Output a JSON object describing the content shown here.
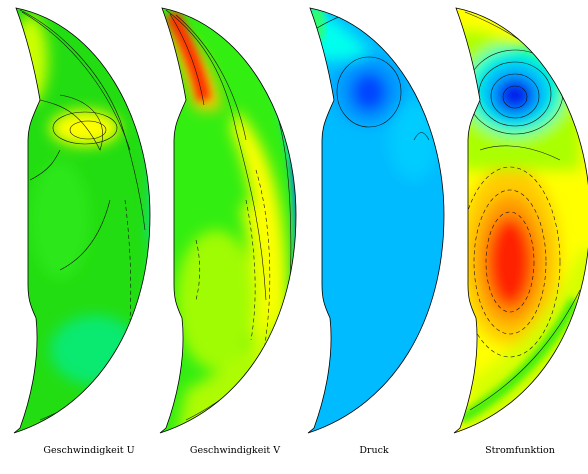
{
  "panels": [
    {
      "label": "Geschwindigkeit U"
    },
    {
      "label": "Geschwindigkeit V"
    },
    {
      "label": "Druck"
    },
    {
      "label": "Stromfunktion"
    }
  ],
  "colors": {
    "green": "#22dd11",
    "yellow": "#ffff00",
    "orange": "#ff9900",
    "red": "#ff2200",
    "cyan": "#00ffff",
    "sky": "#00bbff",
    "blue": "#0033ff",
    "contour": "#111111"
  }
}
